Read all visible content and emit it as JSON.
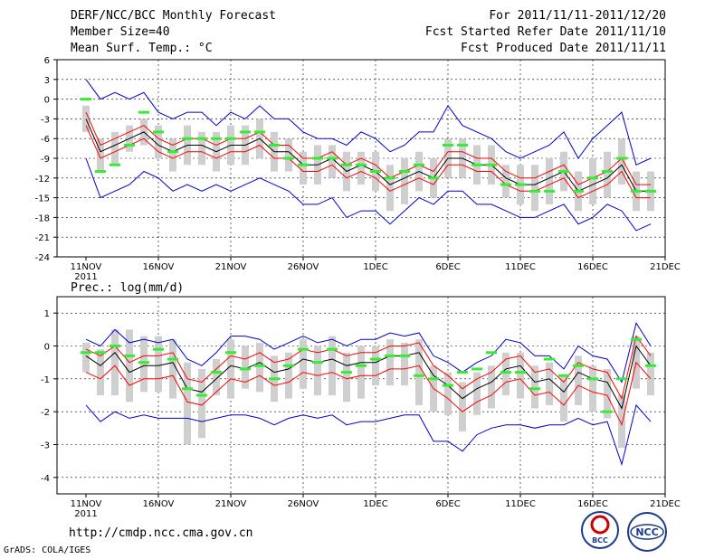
{
  "header": {
    "title": "DERF/NCC/BCC Monthly Forecast",
    "member_size": "Member Size=40",
    "variable": "Mean Surf. Temp.: °C",
    "period": "For 2011/11/11-2011/12/20",
    "started": "Fcst Started Refer Date 2011/11/10",
    "produced": "Fcst Produced Date 2011/11/11"
  },
  "footer": {
    "url": "http://cmdp.ncc.cma.gov.cn",
    "grads": "GrADS: COLA/IGES",
    "logo_bcc": "BCC",
    "logo_ncc": "NCC"
  },
  "chart_data": [
    {
      "type": "line",
      "title": "Mean Surf. Temp.: °C",
      "xlabel": "",
      "ylabel": "",
      "x_tick_labels": [
        "11NOV",
        "16NOV",
        "21NOV",
        "26NOV",
        "1DEC",
        "6DEC",
        "11DEC",
        "16DEC",
        "21DEC"
      ],
      "x_year_label": "2011",
      "ylim": [
        -24,
        6
      ],
      "y_ticks": [
        6,
        3,
        0,
        -3,
        -6,
        -9,
        -12,
        -15,
        -18,
        -21,
        -24
      ],
      "days": 40,
      "series": [
        {
          "name": "ensemble mean",
          "color": "#000000",
          "values": [
            -3,
            -8,
            -7,
            -6,
            -5,
            -7,
            -8,
            -7,
            -7,
            -8,
            -7,
            -7,
            -6,
            -8,
            -8,
            -10,
            -10,
            -9,
            -11,
            -10,
            -11,
            -13,
            -12,
            -11,
            -12,
            -9,
            -9,
            -10,
            -10,
            -12,
            -13,
            -13,
            -12,
            -11,
            -14,
            -13,
            -12,
            -10,
            -14,
            -14
          ]
        },
        {
          "name": "upper std",
          "color": "#ff0000",
          "values": [
            -2,
            -7,
            -6,
            -5,
            -4,
            -6,
            -7,
            -6,
            -6,
            -7,
            -6,
            -6,
            -5,
            -7,
            -7,
            -9,
            -9,
            -8,
            -10,
            -9,
            -10,
            -12,
            -11,
            -10,
            -11,
            -8,
            -8,
            -9,
            -9,
            -11,
            -12,
            -12,
            -11,
            -10,
            -13,
            -12,
            -11,
            -9,
            -13,
            -13
          ]
        },
        {
          "name": "lower std",
          "color": "#ff0000",
          "values": [
            -4,
            -9,
            -8,
            -7,
            -6,
            -8,
            -9,
            -8,
            -8,
            -9,
            -8,
            -8,
            -7,
            -9,
            -9,
            -11,
            -11,
            -10,
            -12,
            -11,
            -12,
            -14,
            -13,
            -12,
            -13,
            -10,
            -10,
            -11,
            -11,
            -13,
            -14,
            -14,
            -13,
            -12,
            -15,
            -14,
            -13,
            -11,
            -15,
            -15
          ]
        },
        {
          "name": "max",
          "color": "#0000cc",
          "values": [
            3,
            0,
            1,
            0,
            1,
            -2,
            -3,
            -2,
            -2,
            -4,
            -2,
            -3,
            -1,
            -3,
            -3,
            -5,
            -6,
            -6,
            -7,
            -5,
            -6,
            -8,
            -7,
            -5,
            -5,
            -1,
            -4,
            -5,
            -6,
            -8,
            -9,
            -8,
            -7,
            -5,
            -9,
            -6,
            -4,
            -2,
            -10,
            -9
          ]
        },
        {
          "name": "min",
          "color": "#0000cc",
          "values": [
            -9,
            -15,
            -14,
            -13,
            -11,
            -12,
            -14,
            -13,
            -14,
            -13,
            -14,
            -13,
            -12,
            -13,
            -14,
            -16,
            -16,
            -15,
            -18,
            -17,
            -17,
            -19,
            -17,
            -15,
            -16,
            -14,
            -14,
            -16,
            -16,
            -17,
            -18,
            -18,
            -17,
            -16,
            -19,
            -18,
            -16,
            -17,
            -20,
            -19
          ]
        },
        {
          "name": "observed climatology",
          "color": "#33ee33",
          "values": [
            0,
            -11,
            -10,
            -7,
            -2,
            -5,
            -8,
            -6,
            -6,
            -6,
            -6,
            -5,
            -5,
            -7,
            -9,
            -10,
            -9,
            -9,
            -10,
            -10,
            -11,
            -12,
            -11,
            -10,
            -12,
            -7,
            -7,
            -10,
            -10,
            -13,
            -13,
            -14,
            -14,
            -11,
            -14,
            -12,
            -11,
            -9,
            -14,
            -14
          ]
        },
        {
          "name": "box high",
          "color": "#cccccc",
          "values": [
            -1,
            -6,
            -5,
            -4,
            -3,
            -4,
            -6,
            -4,
            -5,
            -5,
            -4,
            -4,
            -3,
            -5,
            -6,
            -8,
            -7,
            -7,
            -8,
            -8,
            -8,
            -10,
            -9,
            -8,
            -9,
            -6,
            -6,
            -7,
            -7,
            -10,
            -10,
            -10,
            -9,
            -8,
            -11,
            -9,
            -8,
            -6,
            -11,
            -11
          ]
        },
        {
          "name": "box low",
          "color": "#cccccc",
          "values": [
            -5,
            -11,
            -10,
            -8,
            -7,
            -9,
            -11,
            -10,
            -10,
            -11,
            -10,
            -10,
            -9,
            -11,
            -11,
            -13,
            -13,
            -12,
            -14,
            -13,
            -14,
            -17,
            -16,
            -14,
            -15,
            -12,
            -12,
            -13,
            -13,
            -15,
            -16,
            -17,
            -16,
            -14,
            -17,
            -16,
            -15,
            -13,
            -17,
            -17
          ]
        }
      ]
    },
    {
      "type": "line",
      "title": "Prec.: log(mm/d)",
      "xlabel": "",
      "ylabel": "",
      "x_tick_labels": [
        "11NOV",
        "16NOV",
        "21NOV",
        "26NOV",
        "1DEC",
        "6DEC",
        "11DEC",
        "16DEC",
        "21DEC"
      ],
      "x_year_label": "2011",
      "ylim": [
        -4.5,
        1.5
      ],
      "y_ticks": [
        1,
        0,
        -1,
        -2,
        -3,
        -4
      ],
      "days": 40,
      "series": [
        {
          "name": "ensemble mean",
          "color": "#000000",
          "values": [
            -0.3,
            -0.6,
            -0.2,
            -0.8,
            -0.6,
            -0.6,
            -0.5,
            -1.3,
            -1.4,
            -1.0,
            -0.6,
            -0.7,
            -0.5,
            -0.8,
            -0.7,
            -0.4,
            -0.5,
            -0.4,
            -0.6,
            -0.5,
            -0.5,
            -0.3,
            -0.3,
            -0.2,
            -0.9,
            -1.2,
            -1.6,
            -1.3,
            -1.1,
            -0.7,
            -0.6,
            -1.1,
            -1.0,
            -1.4,
            -0.8,
            -1.0,
            -1.1,
            -1.9,
            0.0,
            -0.6
          ]
        },
        {
          "name": "upper std",
          "color": "#ff0000",
          "values": [
            -0.1,
            -0.3,
            0.0,
            -0.5,
            -0.3,
            -0.3,
            -0.2,
            -1.0,
            -1.1,
            -0.7,
            -0.3,
            -0.4,
            -0.2,
            -0.5,
            -0.4,
            -0.1,
            -0.2,
            -0.1,
            -0.3,
            -0.2,
            -0.2,
            0.0,
            0.0,
            0.1,
            -0.6,
            -0.9,
            -1.3,
            -1.0,
            -0.8,
            -0.4,
            -0.3,
            -0.8,
            -0.7,
            -1.1,
            -0.5,
            -0.7,
            -0.8,
            -1.6,
            0.3,
            -0.3
          ]
        },
        {
          "name": "lower std",
          "color": "#ff0000",
          "values": [
            -0.8,
            -1.0,
            -0.6,
            -1.2,
            -1.0,
            -1.0,
            -0.9,
            -1.7,
            -1.8,
            -1.4,
            -1.0,
            -1.1,
            -0.9,
            -1.2,
            -1.1,
            -0.8,
            -0.9,
            -0.8,
            -1.0,
            -0.9,
            -0.9,
            -0.7,
            -0.7,
            -0.6,
            -1.3,
            -1.6,
            -2.0,
            -1.7,
            -1.5,
            -1.1,
            -1.0,
            -1.5,
            -1.4,
            -1.8,
            -1.2,
            -1.4,
            -1.5,
            -2.4,
            -0.5,
            -1.0
          ]
        },
        {
          "name": "max",
          "color": "#0000cc",
          "values": [
            0.2,
            0.0,
            0.5,
            0.1,
            0.2,
            0.1,
            0.2,
            -0.4,
            -0.6,
            -0.2,
            0.3,
            0.3,
            0.2,
            -0.1,
            0.1,
            0.3,
            0.1,
            0.2,
            0.0,
            0.2,
            0.2,
            0.4,
            0.3,
            0.4,
            -0.3,
            -0.5,
            -0.8,
            -0.5,
            -0.3,
            0.2,
            0.1,
            -0.3,
            -0.3,
            -0.7,
            0.0,
            -0.3,
            -0.4,
            -1.1,
            0.7,
            0.0
          ]
        },
        {
          "name": "min",
          "color": "#0000cc",
          "values": [
            -1.8,
            -2.3,
            -2.0,
            -2.2,
            -2.1,
            -2.2,
            -2.2,
            -2.2,
            -2.3,
            -2.2,
            -2.1,
            -2.1,
            -2.2,
            -2.4,
            -2.2,
            -2.1,
            -2.2,
            -2.1,
            -2.4,
            -2.3,
            -2.3,
            -2.2,
            -2.1,
            -2.1,
            -2.9,
            -2.9,
            -3.2,
            -2.7,
            -2.5,
            -2.4,
            -2.4,
            -2.5,
            -2.4,
            -2.4,
            -2.2,
            -2.4,
            -2.3,
            -3.6,
            -1.8,
            -2.3
          ]
        },
        {
          "name": "observed climatology",
          "color": "#33ee33",
          "values": [
            -0.2,
            -0.2,
            0.0,
            -0.3,
            -0.5,
            -0.1,
            -0.4,
            -1.3,
            -1.5,
            -0.8,
            -0.2,
            -0.7,
            -0.6,
            -1.0,
            -0.6,
            -0.1,
            -0.5,
            -0.1,
            -0.8,
            -0.6,
            -0.4,
            -0.3,
            -0.3,
            -0.9,
            -1.0,
            -1.2,
            -0.8,
            -0.7,
            -0.2,
            -0.8,
            -0.8,
            -1.3,
            -0.4,
            -0.9,
            -0.6,
            -1.0,
            -2.0,
            -1.0,
            0.2,
            -0.6
          ]
        },
        {
          "name": "box high",
          "color": "#cccccc",
          "values": [
            0.1,
            -0.1,
            0.5,
            0.5,
            0.3,
            0.3,
            0.2,
            -0.5,
            -0.7,
            -0.4,
            0.2,
            0.0,
            0.1,
            -0.3,
            -0.2,
            0.2,
            0.0,
            0.3,
            -0.2,
            0.0,
            0.0,
            0.2,
            0.1,
            0.2,
            -0.6,
            -0.8,
            -1.1,
            -0.8,
            -0.6,
            -0.2,
            -0.2,
            -0.6,
            -0.5,
            -0.9,
            -0.3,
            -0.6,
            -0.7,
            -1.5,
            0.3,
            -0.2
          ]
        },
        {
          "name": "box low",
          "color": "#cccccc",
          "values": [
            -0.8,
            -1.5,
            -1.5,
            -1.7,
            -1.4,
            -1.4,
            -1.6,
            -3.0,
            -2.8,
            -1.5,
            -1.6,
            -1.3,
            -1.4,
            -1.7,
            -1.6,
            -1.3,
            -1.5,
            -1.5,
            -1.7,
            -1.6,
            -1.2,
            -1.2,
            -1.2,
            -1.8,
            -2.0,
            -2.1,
            -2.6,
            -2.1,
            -1.9,
            -1.5,
            -1.6,
            -1.9,
            -1.8,
            -2.3,
            -1.8,
            -2.0,
            -2.2,
            -3.1,
            -1.3,
            -1.5
          ]
        }
      ]
    }
  ]
}
